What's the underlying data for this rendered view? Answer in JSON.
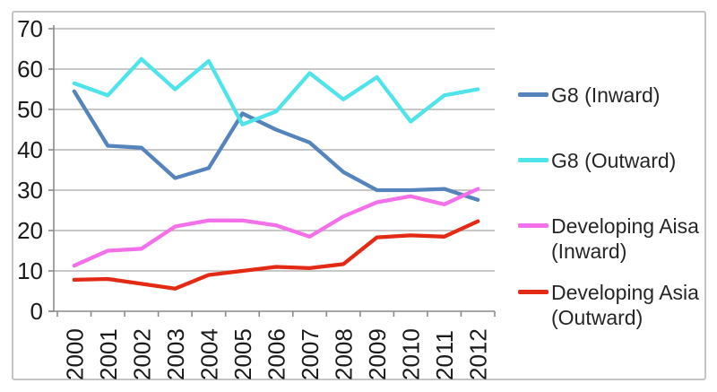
{
  "chart_data": {
    "type": "line",
    "title": "",
    "xlabel": "",
    "ylabel": "",
    "x": [
      "2000",
      "2001",
      "2002",
      "2003",
      "2004",
      "2005",
      "2006",
      "2007",
      "2008",
      "2009",
      "2010",
      "2011",
      "2012"
    ],
    "series": [
      {
        "name": "G8 (Inward)",
        "legend_lines": [
          "G8 (Inward)"
        ],
        "color": "#5584BD",
        "values": [
          54.5,
          41,
          40.5,
          33,
          35.5,
          49,
          45,
          41.8,
          34.5,
          30,
          30,
          30.3,
          27.6
        ]
      },
      {
        "name": "G8 (Outward)",
        "legend_lines": [
          "G8 (Outward)"
        ],
        "color": "#4FE3EA",
        "values": [
          56.5,
          53.5,
          62.5,
          55,
          62,
          46.3,
          49.5,
          59,
          52.5,
          58,
          47,
          53.5,
          55
        ]
      },
      {
        "name": "Developing Aisa (Inward)",
        "legend_lines": [
          "Developing Aisa",
          "(Inward)"
        ],
        "color": "#F46FEA",
        "values": [
          11.3,
          15,
          15.5,
          21,
          22.5,
          22.5,
          21.3,
          18.5,
          23.5,
          27,
          28.5,
          26.5,
          30.3
        ]
      },
      {
        "name": "Developing Asia (Outward)",
        "legend_lines": [
          "Developing Asia",
          "(Outward)"
        ],
        "color": "#E22A14",
        "values": [
          7.8,
          8,
          6.8,
          5.6,
          9,
          10,
          11,
          10.7,
          11.7,
          18.3,
          18.8,
          18.5,
          22.3
        ]
      }
    ],
    "ylim": [
      0,
      70
    ],
    "yticks": [
      0,
      10,
      20,
      30,
      40,
      50,
      60,
      70
    ],
    "grid": "horizontal",
    "legend_position": "right"
  }
}
